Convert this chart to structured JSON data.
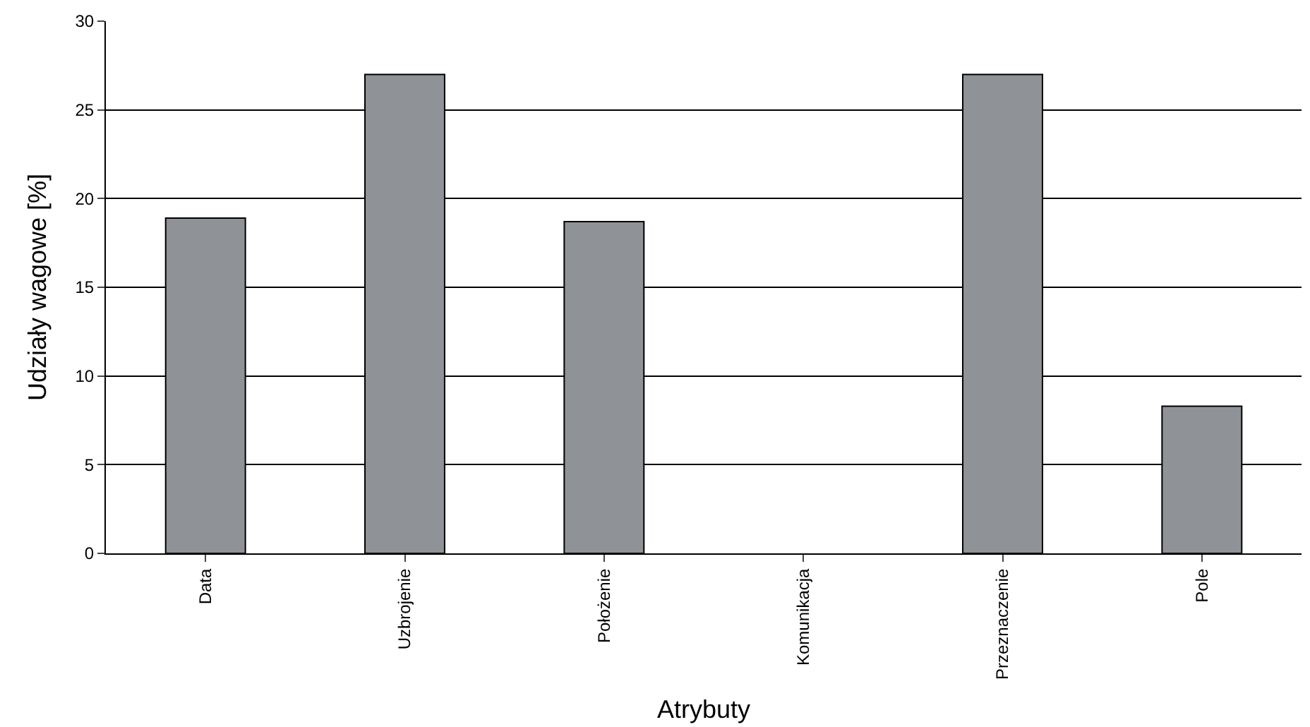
{
  "chart_data": {
    "type": "bar",
    "xlabel": "Atrybuty",
    "ylabel": "Udziały wagowe [%]",
    "categories": [
      "Data",
      "Uzbrojenie",
      "Położenie",
      "Komunikacja",
      "Przeznaczenie",
      "Pole"
    ],
    "values": [
      18.9,
      27.0,
      18.7,
      0,
      27.0,
      8.3
    ],
    "color": "#8f9296",
    "ylim": [
      0,
      30
    ],
    "yticks": [
      0,
      5,
      10,
      15,
      20,
      25,
      30
    ],
    "grid": "y",
    "legend": false
  }
}
